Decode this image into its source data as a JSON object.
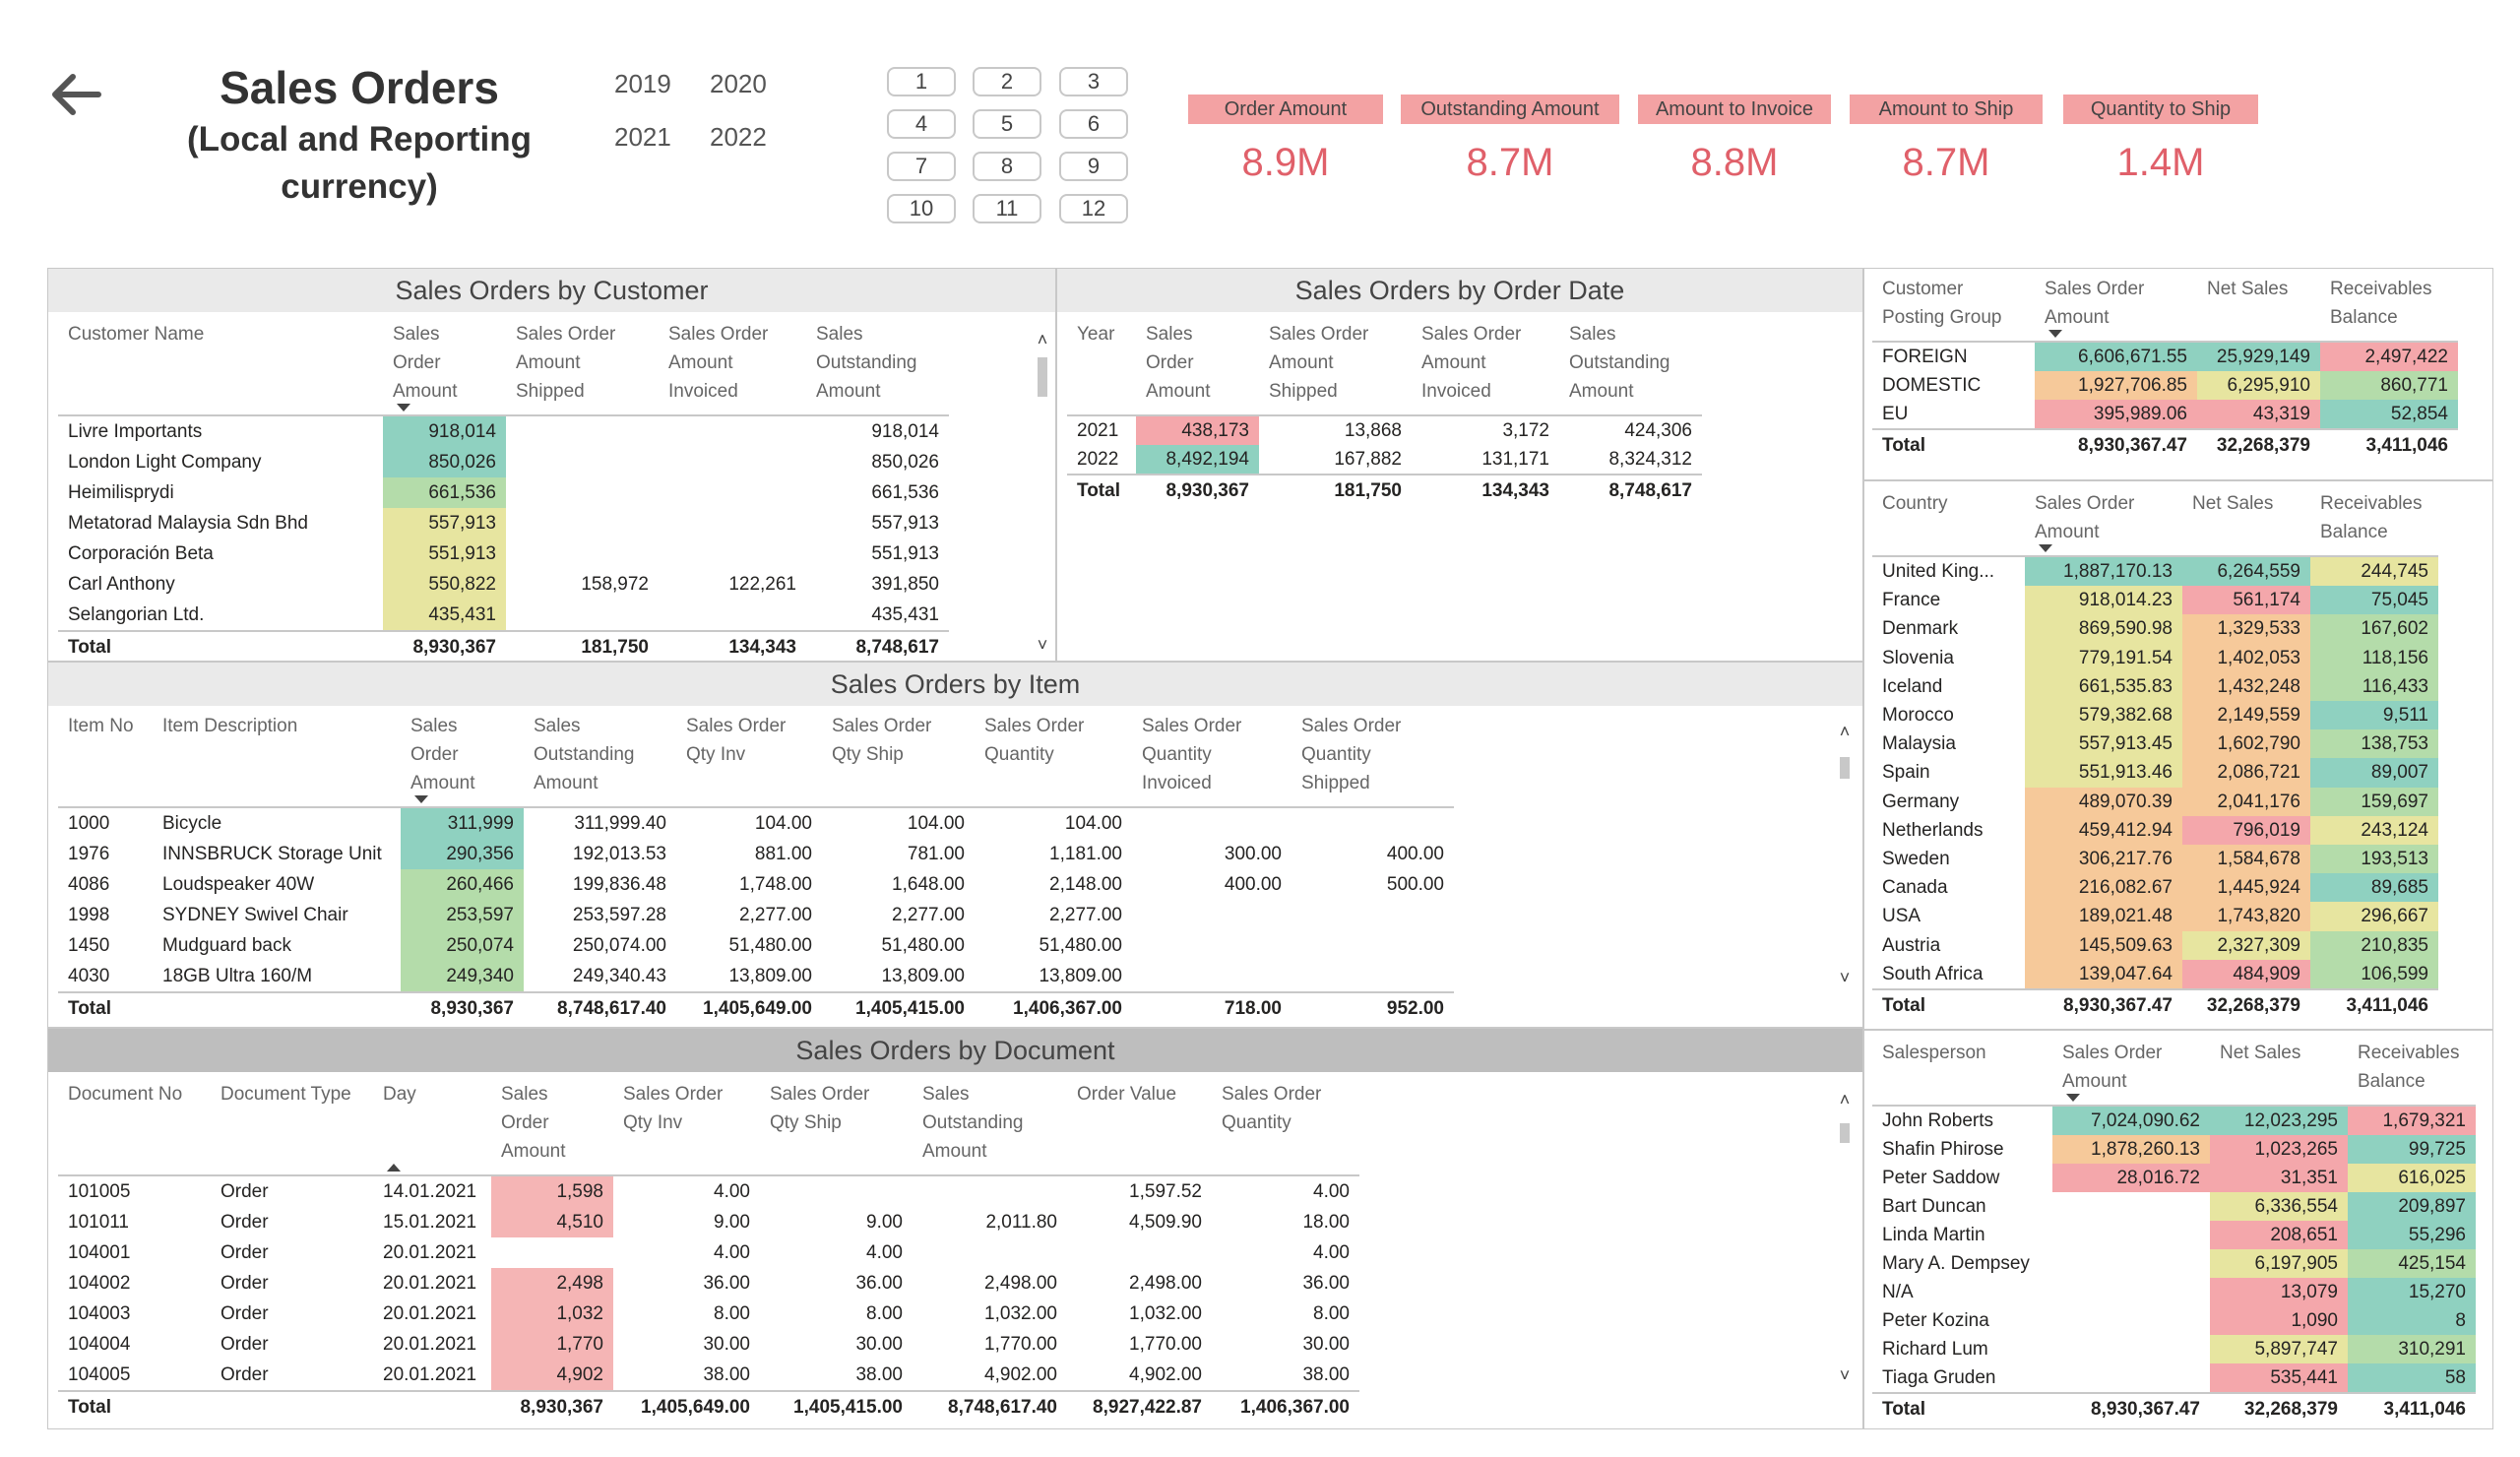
{
  "header": {
    "title_line1": "Sales Orders",
    "title_line2": "(Local and Reporting",
    "title_line3": "currency)"
  },
  "years": [
    "2019",
    "2020",
    "2021",
    "2022"
  ],
  "months": [
    "1",
    "2",
    "3",
    "4",
    "5",
    "6",
    "7",
    "8",
    "9",
    "10",
    "11",
    "12"
  ],
  "kpis": [
    {
      "label": "Order Amount",
      "value": "8.9M"
    },
    {
      "label": "Outstanding Amount",
      "value": "8.7M"
    },
    {
      "label": "Amount to Invoice",
      "value": "8.8M"
    },
    {
      "label": "Amount to Ship",
      "value": "8.7M"
    },
    {
      "label": "Quantity to Ship",
      "value": "1.4M"
    }
  ],
  "colors": {
    "teal": "#8fd1c0",
    "green": "#b4dcaa",
    "yellow": "#e7e5a0",
    "orange": "#f6c99a",
    "red": "#f4a7ab",
    "kpi_value": "#e0606a",
    "kpi_label_bg": "#f3a2a3"
  },
  "customer": {
    "title": "Sales Orders by Customer",
    "headers": [
      [
        "Customer Name"
      ],
      [
        "Sales",
        "Order",
        "Amount"
      ],
      [
        "Sales Order",
        "Amount",
        "Shipped"
      ],
      [
        "Sales Order",
        "Amount",
        "Invoiced"
      ],
      [
        "Sales",
        "Outstanding",
        "Amount"
      ]
    ],
    "rows": [
      {
        "c": [
          "Livre Importants",
          "918,014",
          "",
          "",
          "918,014"
        ],
        "k": "g"
      },
      {
        "c": [
          "London Light Company",
          "850,026",
          "",
          "",
          "850,026"
        ],
        "k": "g"
      },
      {
        "c": [
          "Heimilisprydi",
          "661,536",
          "",
          "",
          "661,536"
        ],
        "k": "lg"
      },
      {
        "c": [
          "Metatorad Malaysia Sdn Bhd",
          "557,913",
          "",
          "",
          "557,913"
        ],
        "k": "ye"
      },
      {
        "c": [
          "Corporación Beta",
          "551,913",
          "",
          "",
          "551,913"
        ],
        "k": "ye"
      },
      {
        "c": [
          "Carl Anthony",
          "550,822",
          "158,972",
          "122,261",
          "391,850"
        ],
        "k": "ye"
      },
      {
        "c": [
          "Selangorian Ltd.",
          "435,431",
          "",
          "",
          "435,431"
        ],
        "k": "ye"
      }
    ],
    "total": [
      "Total",
      "8,930,367",
      "181,750",
      "134,343",
      "8,748,617"
    ]
  },
  "orderdate": {
    "title": "Sales Orders by Order Date",
    "headers": [
      [
        "Year"
      ],
      [
        "Sales",
        "Order",
        "Amount"
      ],
      [
        "Sales Order",
        "Amount",
        "Shipped"
      ],
      [
        "Sales Order",
        "Amount",
        "Invoiced"
      ],
      [
        "Sales",
        "Outstanding",
        "Amount"
      ]
    ],
    "rows": [
      {
        "c": [
          "2021",
          "438,173",
          "13,868",
          "3,172",
          "424,306"
        ],
        "k": "re"
      },
      {
        "c": [
          "2022",
          "8,492,194",
          "167,882",
          "131,171",
          "8,324,312"
        ],
        "k": "g"
      }
    ],
    "total": [
      "Total",
      "8,930,367",
      "181,750",
      "134,343",
      "8,748,617"
    ]
  },
  "item": {
    "title": "Sales Orders by Item",
    "headers": [
      [
        "Item No"
      ],
      [
        "Item Description"
      ],
      [
        "Sales",
        "Order",
        "Amount"
      ],
      [
        "Sales",
        "Outstanding",
        "Amount"
      ],
      [
        "Sales Order",
        "Qty Inv"
      ],
      [
        "Sales Order",
        "Qty Ship"
      ],
      [
        "Sales Order",
        "Quantity"
      ],
      [
        "Sales Order",
        "Quantity",
        "Invoiced"
      ],
      [
        "Sales Order",
        "Quantity",
        "Shipped"
      ]
    ],
    "rows": [
      {
        "c": [
          "1000",
          "Bicycle",
          "311,999",
          "311,999.40",
          "104.00",
          "104.00",
          "104.00",
          "",
          ""
        ],
        "k": "g"
      },
      {
        "c": [
          "1976",
          "INNSBRUCK Storage Unit",
          "290,356",
          "192,013.53",
          "881.00",
          "781.00",
          "1,181.00",
          "300.00",
          "400.00"
        ],
        "k": "g"
      },
      {
        "c": [
          "4086",
          "Loudspeaker 40W",
          "260,466",
          "199,836.48",
          "1,748.00",
          "1,648.00",
          "2,148.00",
          "400.00",
          "500.00"
        ],
        "k": "lg"
      },
      {
        "c": [
          "1998",
          "SYDNEY Swivel Chair",
          "253,597",
          "253,597.28",
          "2,277.00",
          "2,277.00",
          "2,277.00",
          "",
          ""
        ],
        "k": "lg"
      },
      {
        "c": [
          "1450",
          "Mudguard back",
          "250,074",
          "250,074.00",
          "51,480.00",
          "51,480.00",
          "51,480.00",
          "",
          ""
        ],
        "k": "lg"
      },
      {
        "c": [
          "4030",
          "18GB Ultra 160/M",
          "249,340",
          "249,340.43",
          "13,809.00",
          "13,809.00",
          "13,809.00",
          "",
          ""
        ],
        "k": "lg"
      }
    ],
    "total": [
      "Total",
      "",
      "8,930,367",
      "8,748,617.40",
      "1,405,649.00",
      "1,405,415.00",
      "1,406,367.00",
      "718.00",
      "952.00"
    ]
  },
  "document": {
    "title": "Sales Orders by Document",
    "headers": [
      [
        "Document No"
      ],
      [
        "Document Type"
      ],
      [
        "Day"
      ],
      [
        "Sales",
        "Order",
        "Amount"
      ],
      [
        "Sales Order",
        "Qty Inv"
      ],
      [
        "Sales Order",
        "Qty Ship"
      ],
      [
        "Sales",
        "Outstanding",
        "Amount"
      ],
      [
        "Order Value"
      ],
      [
        "Sales Order",
        "Quantity"
      ]
    ],
    "rows": [
      {
        "c": [
          "101005",
          "Order",
          "14.01.2021",
          "1,598",
          "4.00",
          "",
          "",
          "1,597.52",
          "4.00"
        ],
        "k": "pk"
      },
      {
        "c": [
          "101011",
          "Order",
          "15.01.2021",
          "4,510",
          "9.00",
          "9.00",
          "2,011.80",
          "4,509.90",
          "18.00"
        ],
        "k": "pk"
      },
      {
        "c": [
          "104001",
          "Order",
          "20.01.2021",
          "",
          "4.00",
          "4.00",
          "",
          "",
          "4.00"
        ],
        "k": ""
      },
      {
        "c": [
          "104002",
          "Order",
          "20.01.2021",
          "2,498",
          "36.00",
          "36.00",
          "2,498.00",
          "2,498.00",
          "36.00"
        ],
        "k": "pk"
      },
      {
        "c": [
          "104003",
          "Order",
          "20.01.2021",
          "1,032",
          "8.00",
          "8.00",
          "1,032.00",
          "1,032.00",
          "8.00"
        ],
        "k": "pk"
      },
      {
        "c": [
          "104004",
          "Order",
          "20.01.2021",
          "1,770",
          "30.00",
          "30.00",
          "1,770.00",
          "1,770.00",
          "30.00"
        ],
        "k": "pk"
      },
      {
        "c": [
          "104005",
          "Order",
          "20.01.2021",
          "4,902",
          "38.00",
          "38.00",
          "4,902.00",
          "4,902.00",
          "38.00"
        ],
        "k": "pk"
      }
    ],
    "total": [
      "Total",
      "",
      "",
      "8,930,367",
      "1,405,649.00",
      "1,405,415.00",
      "8,748,617.40",
      "8,927,422.87",
      "1,406,367.00"
    ]
  },
  "posting": {
    "headers": [
      [
        "Customer",
        "Posting Group"
      ],
      [
        "Sales Order",
        "Amount"
      ],
      [
        "Net Sales"
      ],
      [
        "Receivables",
        "Balance"
      ]
    ],
    "rows": [
      {
        "c": [
          "FOREIGN",
          "6,606,671.55",
          "25,929,149",
          "2,497,422"
        ],
        "k": [
          "",
          "g",
          "g",
          "re"
        ]
      },
      {
        "c": [
          "DOMESTIC",
          "1,927,706.85",
          "6,295,910",
          "860,771"
        ],
        "k": [
          "",
          "or",
          "ye",
          "lg"
        ]
      },
      {
        "c": [
          "EU",
          "395,989.06",
          "43,319",
          "52,854"
        ],
        "k": [
          "",
          "re",
          "re",
          "g"
        ]
      }
    ],
    "total": [
      "Total",
      "8,930,367.47",
      "32,268,379",
      "3,411,046"
    ]
  },
  "country": {
    "headers": [
      [
        "Country"
      ],
      [
        "Sales Order",
        "Amount"
      ],
      [
        "Net Sales"
      ],
      [
        "Receivables",
        "Balance"
      ]
    ],
    "rows": [
      {
        "c": [
          "United King...",
          "1,887,170.13",
          "6,264,559",
          "244,745"
        ],
        "k": [
          "",
          "g",
          "g",
          "ye"
        ]
      },
      {
        "c": [
          "France",
          "918,014.23",
          "561,174",
          "75,045"
        ],
        "k": [
          "",
          "ye",
          "re",
          "g"
        ]
      },
      {
        "c": [
          "Denmark",
          "869,590.98",
          "1,329,533",
          "167,602"
        ],
        "k": [
          "",
          "ye",
          "or",
          "lg"
        ]
      },
      {
        "c": [
          "Slovenia",
          "779,191.54",
          "1,402,053",
          "118,156"
        ],
        "k": [
          "",
          "ye",
          "or",
          "lg"
        ]
      },
      {
        "c": [
          "Iceland",
          "661,535.83",
          "1,432,248",
          "116,433"
        ],
        "k": [
          "",
          "ye",
          "or",
          "lg"
        ]
      },
      {
        "c": [
          "Morocco",
          "579,382.68",
          "2,149,559",
          "9,511"
        ],
        "k": [
          "",
          "ye",
          "or",
          "g"
        ]
      },
      {
        "c": [
          "Malaysia",
          "557,913.45",
          "1,602,790",
          "138,753"
        ],
        "k": [
          "",
          "ye",
          "or",
          "lg"
        ]
      },
      {
        "c": [
          "Spain",
          "551,913.46",
          "2,086,721",
          "89,007"
        ],
        "k": [
          "",
          "ye",
          "or",
          "g"
        ]
      },
      {
        "c": [
          "Germany",
          "489,070.39",
          "2,041,176",
          "159,697"
        ],
        "k": [
          "",
          "or",
          "or",
          "lg"
        ]
      },
      {
        "c": [
          "Netherlands",
          "459,412.94",
          "796,019",
          "243,124"
        ],
        "k": [
          "",
          "or",
          "re",
          "ye"
        ]
      },
      {
        "c": [
          "Sweden",
          "306,217.76",
          "1,584,678",
          "193,513"
        ],
        "k": [
          "",
          "or",
          "or",
          "lg"
        ]
      },
      {
        "c": [
          "Canada",
          "216,082.67",
          "1,445,924",
          "89,685"
        ],
        "k": [
          "",
          "or",
          "or",
          "g"
        ]
      },
      {
        "c": [
          "USA",
          "189,021.48",
          "1,743,820",
          "296,667"
        ],
        "k": [
          "",
          "or",
          "or",
          "ye"
        ]
      },
      {
        "c": [
          "Austria",
          "145,509.63",
          "2,327,309",
          "210,835"
        ],
        "k": [
          "",
          "or",
          "ye",
          "lg"
        ]
      },
      {
        "c": [
          "South Africa",
          "139,047.64",
          "484,909",
          "106,599"
        ],
        "k": [
          "",
          "or",
          "re",
          "lg"
        ]
      }
    ],
    "total": [
      "Total",
      "8,930,367.47",
      "32,268,379",
      "3,411,046"
    ]
  },
  "salesperson": {
    "headers": [
      [
        "Salesperson"
      ],
      [
        "Sales Order",
        "Amount"
      ],
      [
        "Net Sales"
      ],
      [
        "Receivables",
        "Balance"
      ]
    ],
    "rows": [
      {
        "c": [
          "John Roberts",
          "7,024,090.62",
          "12,023,295",
          "1,679,321"
        ],
        "k": [
          "",
          "g",
          "g",
          "re"
        ]
      },
      {
        "c": [
          "Shafin Phirose",
          "1,878,260.13",
          "1,023,265",
          "99,725"
        ],
        "k": [
          "",
          "or",
          "re",
          "g"
        ]
      },
      {
        "c": [
          "Peter Saddow",
          "28,016.72",
          "31,351",
          "616,025"
        ],
        "k": [
          "",
          "re",
          "re",
          "ye"
        ]
      },
      {
        "c": [
          "Bart Duncan",
          "",
          "6,336,554",
          "209,897"
        ],
        "k": [
          "",
          "",
          "ye",
          "g"
        ]
      },
      {
        "c": [
          "Linda Martin",
          "",
          "208,651",
          "55,296"
        ],
        "k": [
          "",
          "",
          "re",
          "g"
        ]
      },
      {
        "c": [
          "Mary A. Dempsey",
          "",
          "6,197,905",
          "425,154"
        ],
        "k": [
          "",
          "",
          "ye",
          "lg"
        ]
      },
      {
        "c": [
          "N/A",
          "",
          "13,079",
          "15,270"
        ],
        "k": [
          "",
          "",
          "re",
          "g"
        ]
      },
      {
        "c": [
          "Peter Kozina",
          "",
          "1,090",
          "8"
        ],
        "k": [
          "",
          "",
          "re",
          "g"
        ]
      },
      {
        "c": [
          "Richard Lum",
          "",
          "5,897,747",
          "310,291"
        ],
        "k": [
          "",
          "",
          "ye",
          "lg"
        ]
      },
      {
        "c": [
          "Tiaga Gruden",
          "",
          "535,441",
          "58"
        ],
        "k": [
          "",
          "",
          "re",
          "g"
        ]
      }
    ],
    "total": [
      "Total",
      "8,930,367.47",
      "32,268,379",
      "3,411,046"
    ]
  }
}
